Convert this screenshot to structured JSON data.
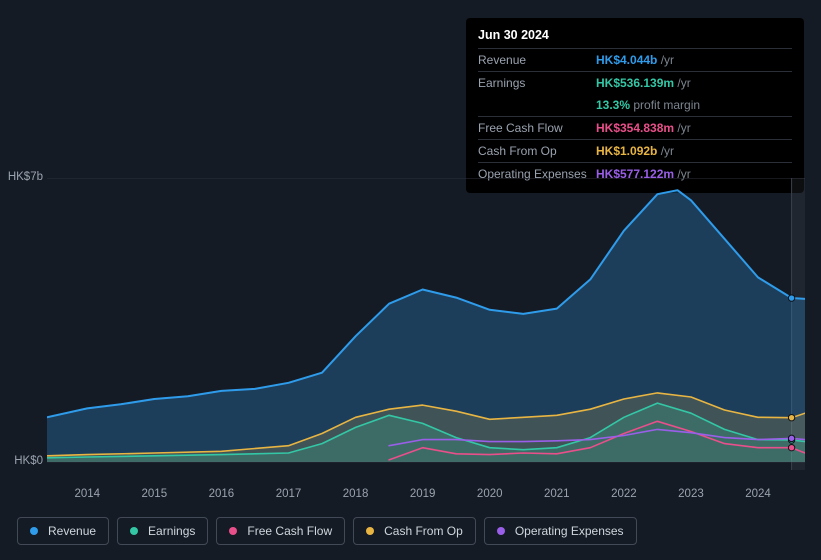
{
  "background_color": "#151b24",
  "tooltip": {
    "title": "Jun 30 2024",
    "rows": [
      {
        "label": "Revenue",
        "value": "HK$4.044b",
        "unit": "/yr",
        "color": "#2f9ceb"
      },
      {
        "label": "Earnings",
        "value": "HK$536.139m",
        "unit": "/yr",
        "color": "#33c7a6",
        "sub_value": "13.3%",
        "sub_text": "profit margin"
      },
      {
        "label": "Free Cash Flow",
        "value": "HK$354.838m",
        "unit": "/yr",
        "color": "#e94f8a"
      },
      {
        "label": "Cash From Op",
        "value": "HK$1.092b",
        "unit": "/yr",
        "color": "#e8b543"
      },
      {
        "label": "Operating Expenses",
        "value": "HK$577.122m",
        "unit": "/yr",
        "color": "#9a5fe8"
      }
    ]
  },
  "chart": {
    "type": "area-line",
    "x_axis": {
      "years": [
        2014,
        2015,
        2016,
        2017,
        2018,
        2019,
        2020,
        2021,
        2022,
        2023,
        2024
      ],
      "domain_start": 2013.4,
      "domain_end": 2024.7,
      "label_color": "#9aa3b0",
      "label_fontsize": 11.5
    },
    "y_axis": {
      "ticks": [
        {
          "value": 0,
          "label": "HK$0"
        },
        {
          "value": 7,
          "label": "HK$7b"
        }
      ],
      "ymin": -0.2,
      "ymax": 7.0,
      "label_color": "#9aa3b0",
      "label_fontsize": 11.5,
      "gridline_color": "#2b313b"
    },
    "marker_x": 2024.5,
    "marker_band": {
      "start": 2024.5,
      "end": 2024.7
    },
    "series": [
      {
        "key": "revenue",
        "label": "Revenue",
        "color": "#2f9ceb",
        "fill_opacity": 0.28,
        "stroke_width": 2,
        "area": true,
        "data": [
          [
            2013.4,
            1.1
          ],
          [
            2014,
            1.32
          ],
          [
            2014.5,
            1.42
          ],
          [
            2015,
            1.55
          ],
          [
            2015.5,
            1.62
          ],
          [
            2016,
            1.75
          ],
          [
            2016.5,
            1.8
          ],
          [
            2017,
            1.95
          ],
          [
            2017.5,
            2.2
          ],
          [
            2018,
            3.1
          ],
          [
            2018.5,
            3.9
          ],
          [
            2019,
            4.25
          ],
          [
            2019.5,
            4.05
          ],
          [
            2020,
            3.75
          ],
          [
            2020.5,
            3.65
          ],
          [
            2021,
            3.78
          ],
          [
            2021.5,
            4.5
          ],
          [
            2022,
            5.7
          ],
          [
            2022.5,
            6.6
          ],
          [
            2022.8,
            6.7
          ],
          [
            2023,
            6.45
          ],
          [
            2023.5,
            5.5
          ],
          [
            2024,
            4.55
          ],
          [
            2024.5,
            4.04
          ],
          [
            2024.7,
            4.02
          ]
        ]
      },
      {
        "key": "cash_from_op",
        "label": "Cash From Op",
        "color": "#e8b543",
        "fill_opacity": 0.18,
        "stroke_width": 1.6,
        "area": true,
        "data": [
          [
            2013.4,
            0.15
          ],
          [
            2014,
            0.18
          ],
          [
            2015,
            0.22
          ],
          [
            2016,
            0.26
          ],
          [
            2017,
            0.4
          ],
          [
            2017.5,
            0.7
          ],
          [
            2018,
            1.1
          ],
          [
            2018.5,
            1.3
          ],
          [
            2019,
            1.4
          ],
          [
            2019.5,
            1.25
          ],
          [
            2020,
            1.05
          ],
          [
            2020.5,
            1.1
          ],
          [
            2021,
            1.15
          ],
          [
            2021.5,
            1.3
          ],
          [
            2022,
            1.55
          ],
          [
            2022.5,
            1.7
          ],
          [
            2023,
            1.6
          ],
          [
            2023.5,
            1.28
          ],
          [
            2024,
            1.1
          ],
          [
            2024.5,
            1.09
          ],
          [
            2024.7,
            1.2
          ]
        ]
      },
      {
        "key": "earnings",
        "label": "Earnings",
        "color": "#33c7a6",
        "fill_opacity": 0.22,
        "stroke_width": 1.6,
        "area": true,
        "data": [
          [
            2013.4,
            0.1
          ],
          [
            2014,
            0.12
          ],
          [
            2015,
            0.15
          ],
          [
            2016,
            0.18
          ],
          [
            2017,
            0.22
          ],
          [
            2017.5,
            0.45
          ],
          [
            2018,
            0.85
          ],
          [
            2018.5,
            1.15
          ],
          [
            2019,
            0.95
          ],
          [
            2019.5,
            0.6
          ],
          [
            2020,
            0.35
          ],
          [
            2020.5,
            0.3
          ],
          [
            2021,
            0.35
          ],
          [
            2021.5,
            0.6
          ],
          [
            2022,
            1.1
          ],
          [
            2022.5,
            1.45
          ],
          [
            2023,
            1.2
          ],
          [
            2023.5,
            0.8
          ],
          [
            2024,
            0.55
          ],
          [
            2024.5,
            0.54
          ],
          [
            2024.7,
            0.5
          ]
        ]
      },
      {
        "key": "free_cash_flow",
        "label": "Free Cash Flow",
        "color": "#e94f8a",
        "fill_opacity": 0.0,
        "stroke_width": 1.6,
        "area": false,
        "data": [
          [
            2018.5,
            0.05
          ],
          [
            2019,
            0.35
          ],
          [
            2019.5,
            0.2
          ],
          [
            2020,
            0.18
          ],
          [
            2020.5,
            0.22
          ],
          [
            2021,
            0.2
          ],
          [
            2021.5,
            0.35
          ],
          [
            2022,
            0.7
          ],
          [
            2022.5,
            1.0
          ],
          [
            2023,
            0.75
          ],
          [
            2023.5,
            0.45
          ],
          [
            2024,
            0.35
          ],
          [
            2024.5,
            0.35
          ],
          [
            2024.7,
            0.22
          ]
        ]
      },
      {
        "key": "operating_expenses",
        "label": "Operating Expenses",
        "color": "#9a5fe8",
        "fill_opacity": 0.0,
        "stroke_width": 1.6,
        "area": false,
        "data": [
          [
            2018.5,
            0.4
          ],
          [
            2019,
            0.55
          ],
          [
            2019.5,
            0.55
          ],
          [
            2020,
            0.5
          ],
          [
            2020.5,
            0.5
          ],
          [
            2021,
            0.52
          ],
          [
            2021.5,
            0.55
          ],
          [
            2022,
            0.65
          ],
          [
            2022.5,
            0.8
          ],
          [
            2023,
            0.72
          ],
          [
            2023.5,
            0.6
          ],
          [
            2024,
            0.55
          ],
          [
            2024.5,
            0.58
          ],
          [
            2024.7,
            0.55
          ]
        ]
      }
    ],
    "legend": {
      "border_color": "#414a56",
      "text_color": "#d0d6dd",
      "items": [
        "Revenue",
        "Earnings",
        "Free Cash Flow",
        "Cash From Op",
        "Operating Expenses"
      ]
    }
  }
}
